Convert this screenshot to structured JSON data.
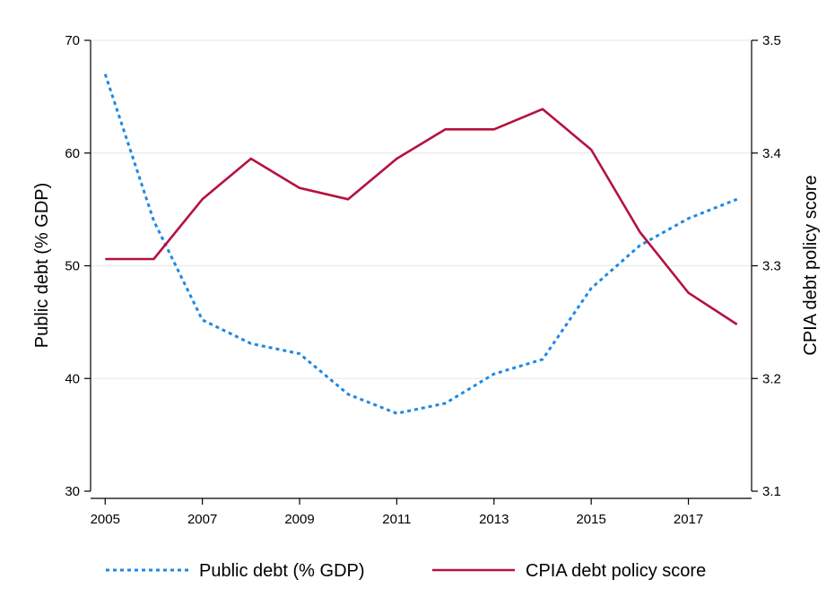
{
  "chart_data": {
    "type": "line",
    "x": [
      2005,
      2006,
      2007,
      2008,
      2009,
      2010,
      2011,
      2012,
      2013,
      2014,
      2015,
      2016,
      2017,
      2018
    ],
    "x_ticks": [
      2005,
      2007,
      2009,
      2011,
      2013,
      2015,
      2017
    ],
    "xlim": [
      2005,
      2018
    ],
    "y_left": {
      "label": "Public debt (% GDP)",
      "lim": [
        30,
        70
      ],
      "ticks": [
        30,
        40,
        50,
        60,
        70
      ]
    },
    "y_right": {
      "label": "CPIA debt policy score",
      "lim": [
        3.1,
        3.5
      ],
      "ticks": [
        "3.1",
        "3.2",
        "3.3",
        "3.4",
        "3.5"
      ]
    },
    "series": [
      {
        "name": "Public debt (% GDP)",
        "axis": "left",
        "style": "dotted",
        "color": "#1e88e5",
        "values": [
          67.0,
          54.0,
          45.2,
          43.1,
          42.2,
          38.6,
          36.9,
          37.8,
          40.4,
          41.7,
          48.0,
          51.8,
          54.2,
          55.9
        ]
      },
      {
        "name": "CPIA debt policy score",
        "axis": "right",
        "style": "solid",
        "color": "#b5123e",
        "values": [
          3.306,
          3.306,
          3.359,
          3.395,
          3.369,
          3.359,
          3.395,
          3.421,
          3.421,
          3.439,
          3.403,
          3.33,
          3.276,
          3.248
        ]
      }
    ],
    "grid": true,
    "legend_position": "bottom"
  }
}
